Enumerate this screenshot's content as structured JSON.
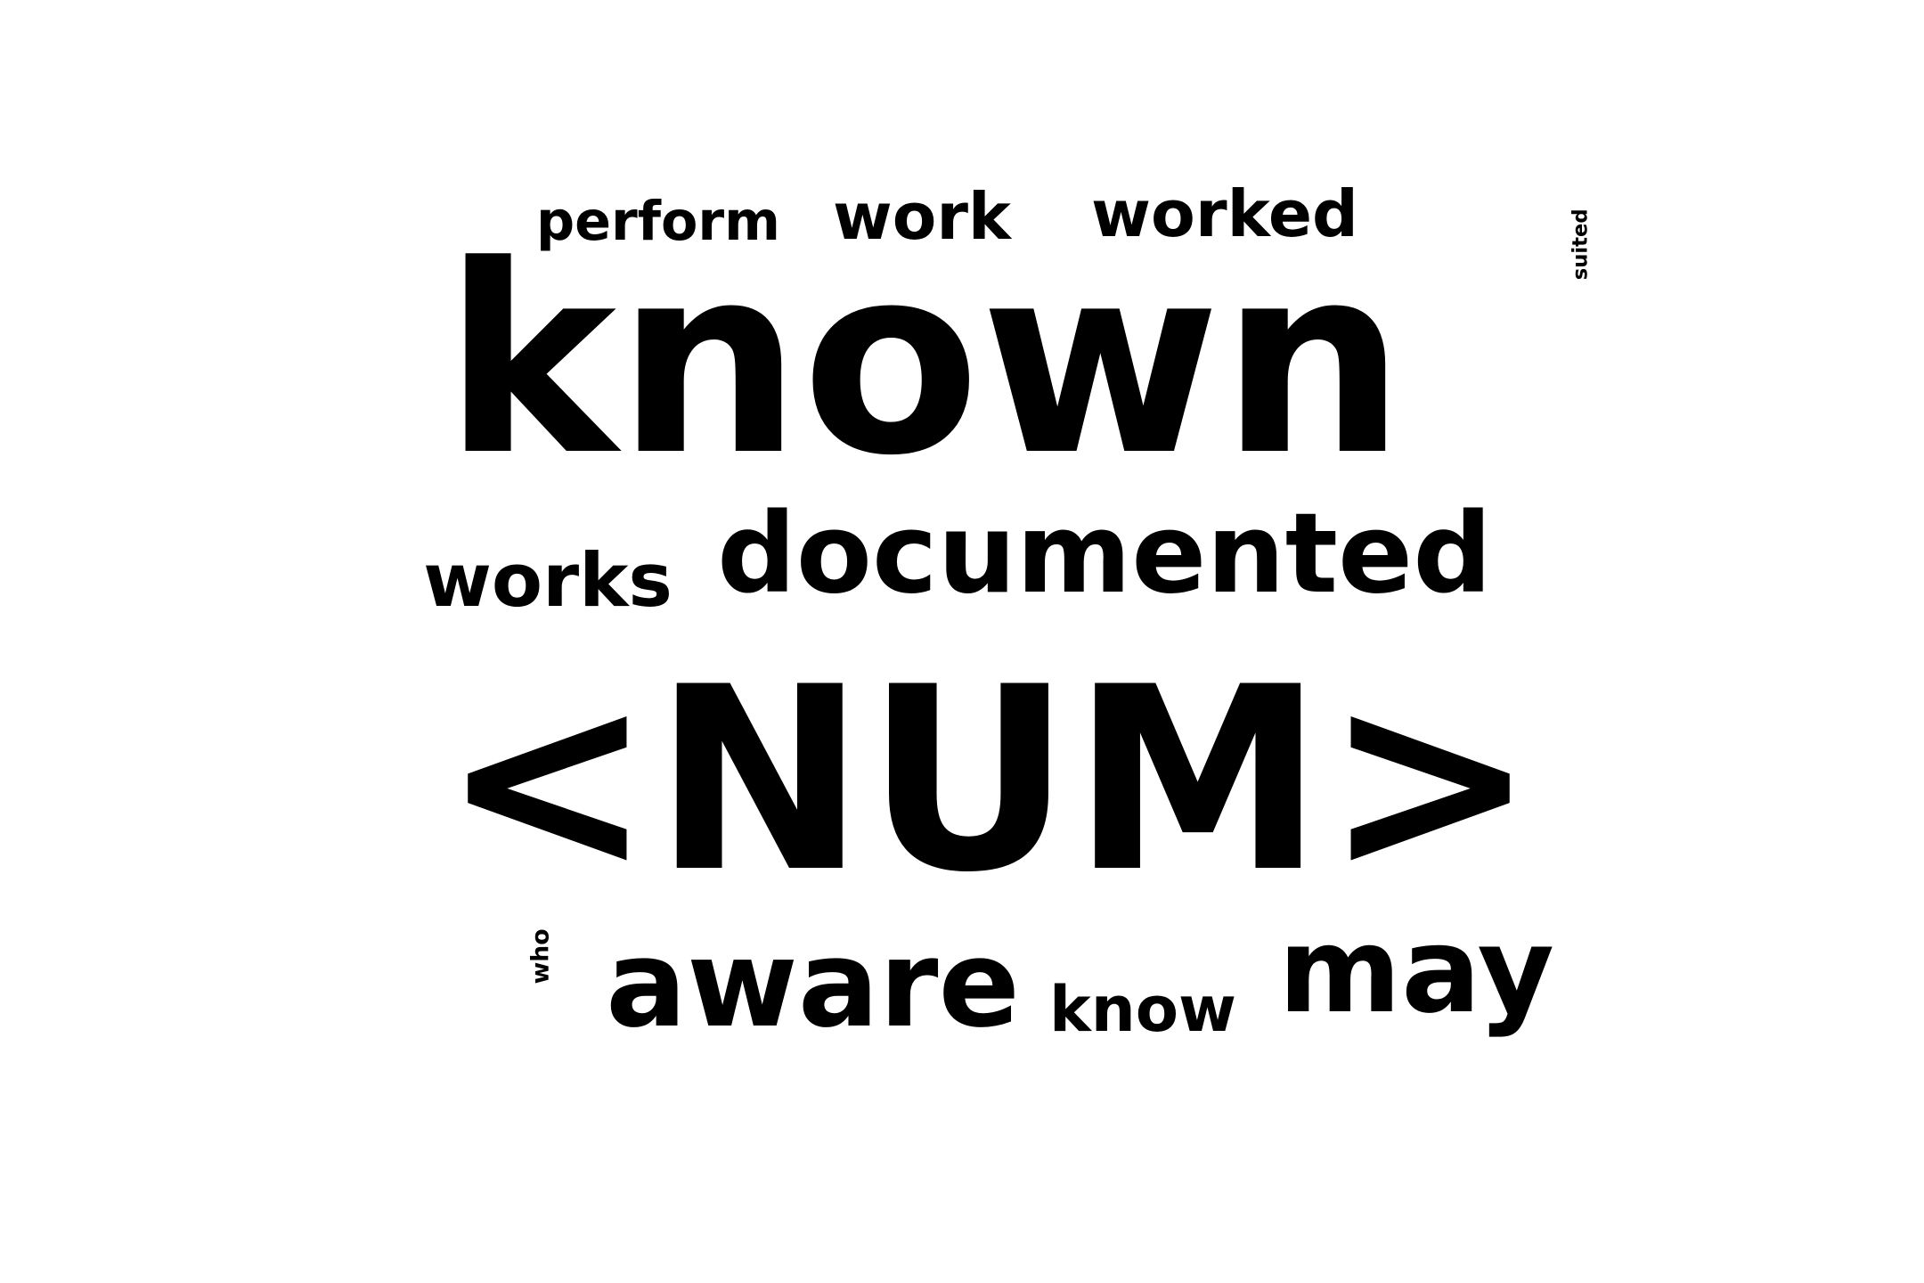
{
  "word_cloud": {
    "text_color": "#000000",
    "background_color": "#ffffff",
    "words": {
      "perform": "perform",
      "work": "work",
      "worked": "worked",
      "known": "known",
      "suited": "suited",
      "works": "works",
      "documented": "documented",
      "num": "<NUM>",
      "who": "who",
      "aware": "aware",
      "know": "know",
      "may": "may"
    }
  }
}
